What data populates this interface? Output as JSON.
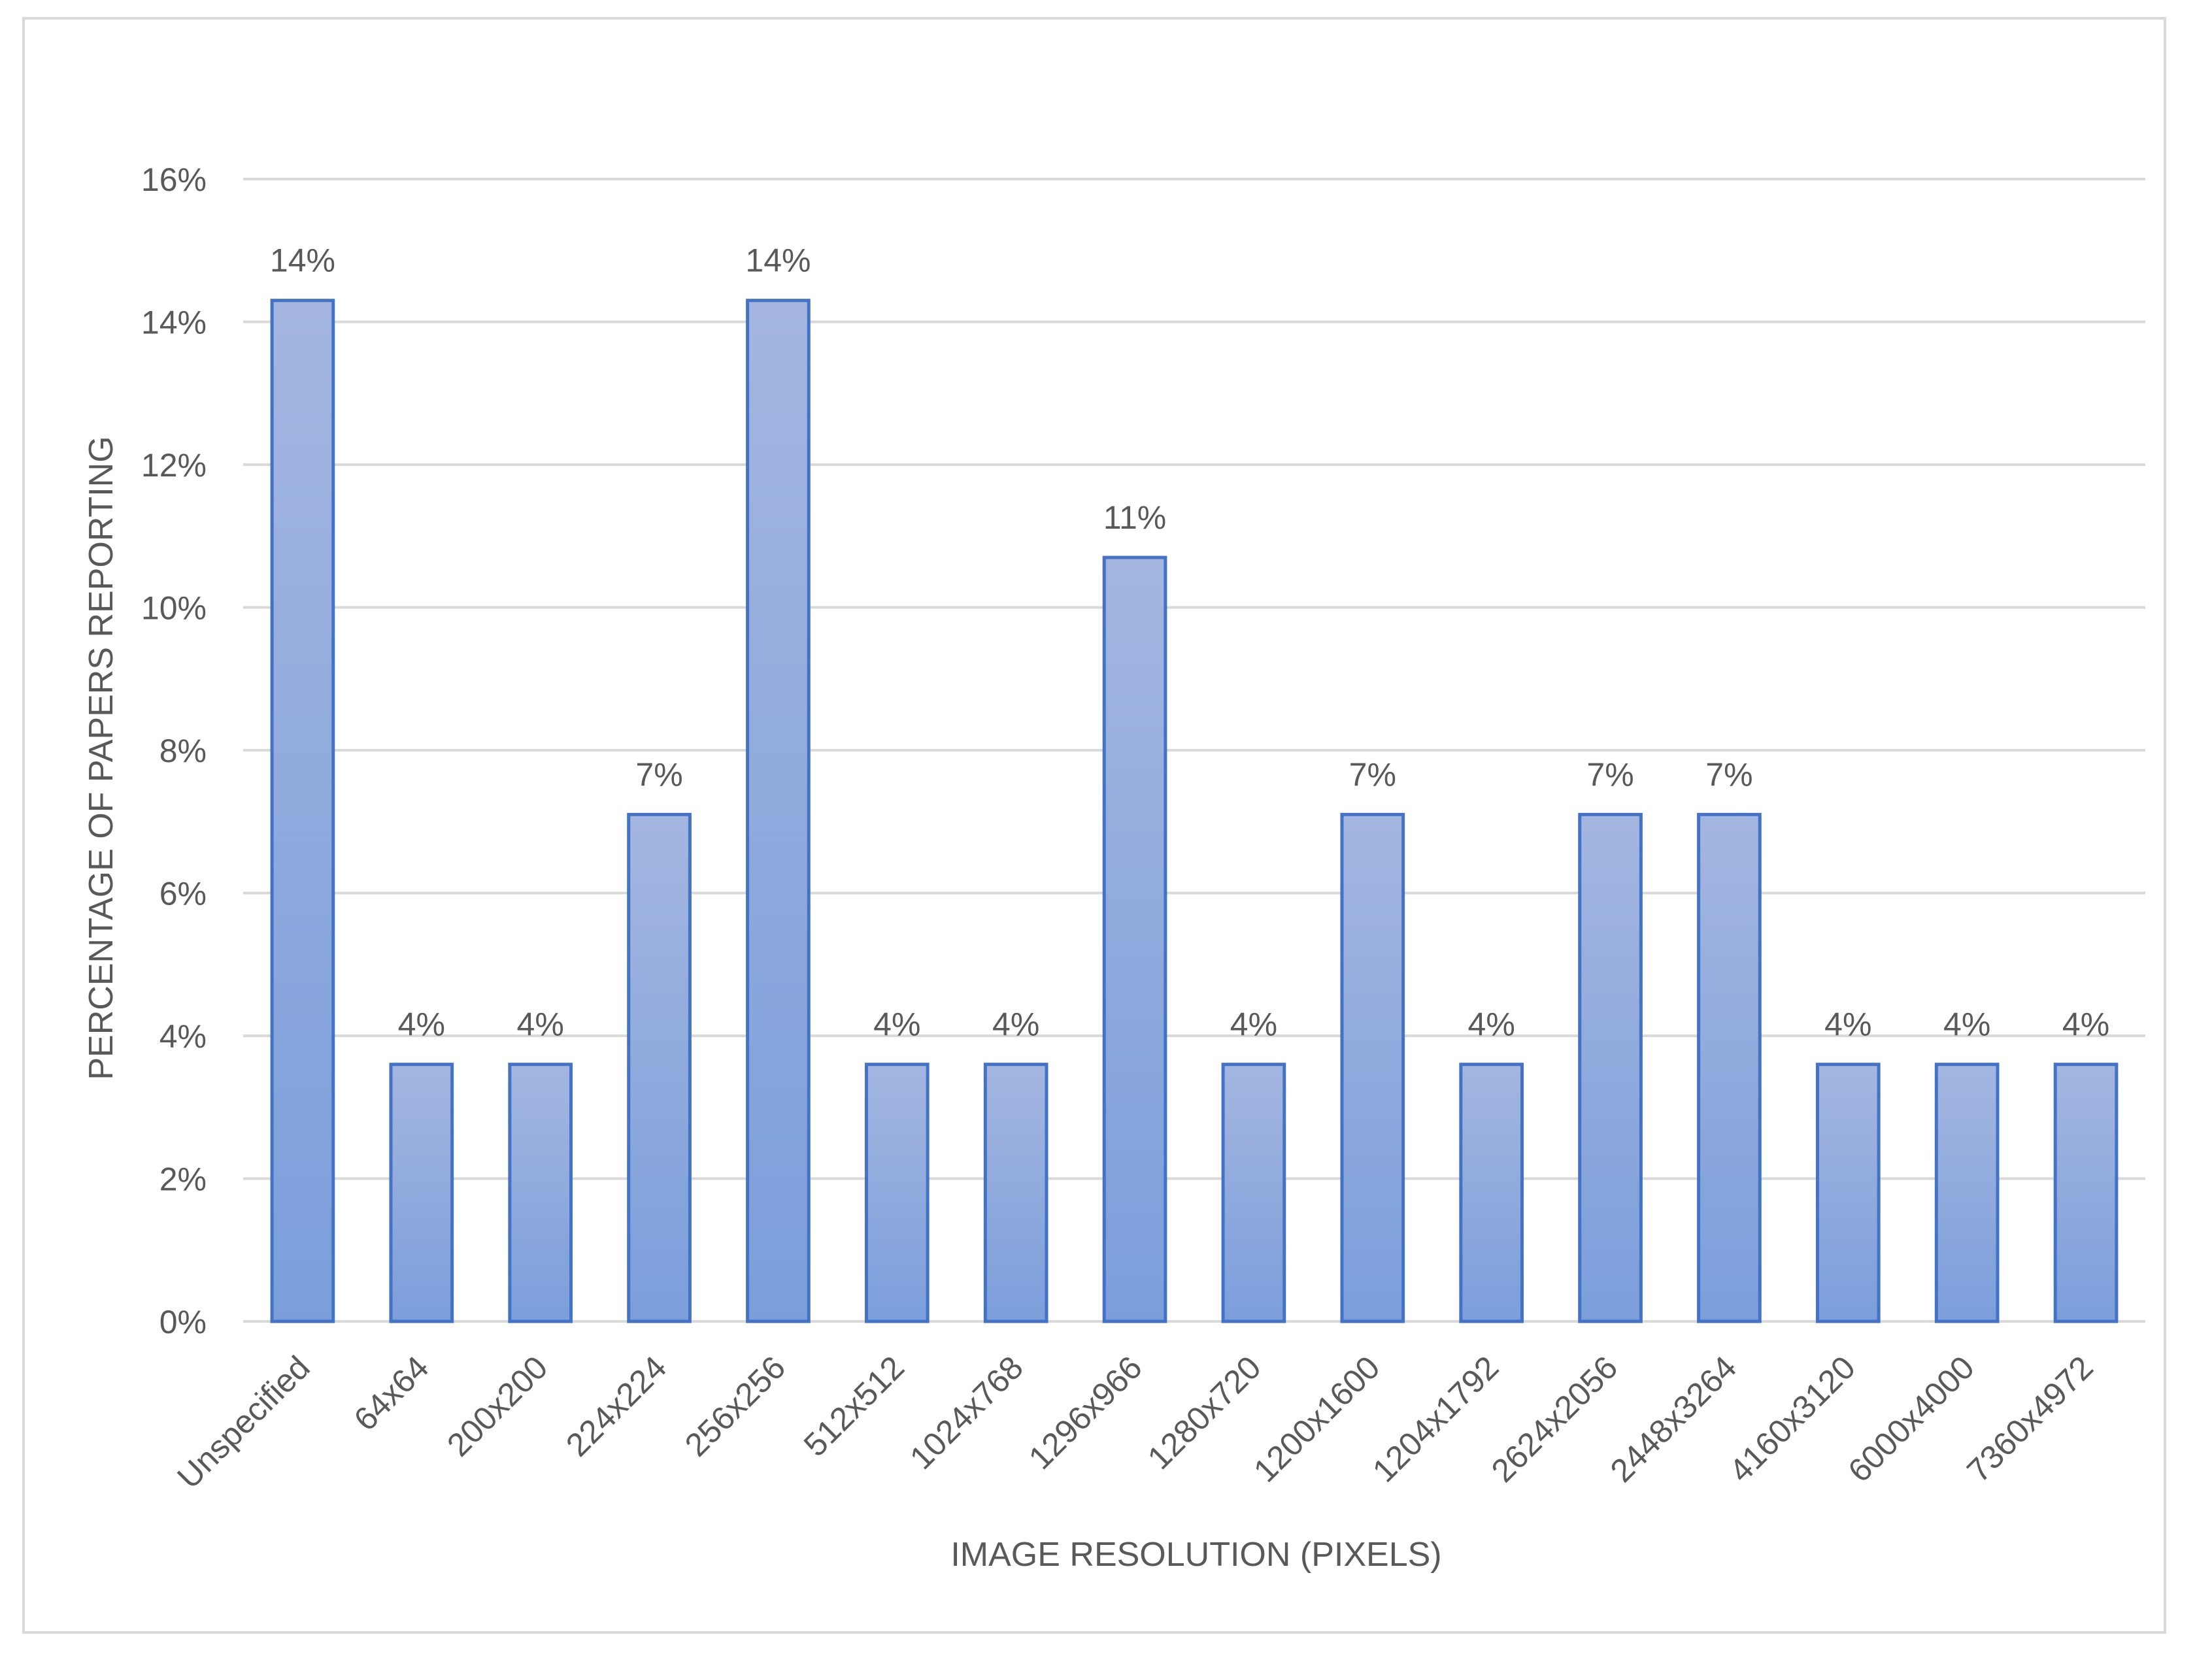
{
  "chart_data": {
    "type": "bar",
    "title": "",
    "xlabel": "IMAGE RESOLUTION (PIXELS)",
    "ylabel": "PERCENTAGE OF PAPERS REPORTING",
    "categories": [
      "Unspecified",
      "64x64",
      "200x200",
      "224x224",
      "256x256",
      "512x512",
      "1024x768",
      "1296x966",
      "1280x720",
      "1200x1600",
      "1204x1792",
      "2624x2056",
      "2448x3264",
      "4160x3120",
      "6000x4000",
      "7360x4972"
    ],
    "values": [
      14.3,
      3.6,
      3.6,
      7.1,
      14.3,
      3.6,
      3.6,
      10.7,
      3.6,
      7.1,
      3.6,
      7.1,
      7.1,
      3.6,
      3.6,
      3.6
    ],
    "data_labels": [
      "14%",
      "4%",
      "4%",
      "7%",
      "14%",
      "4%",
      "4%",
      "11%",
      "4%",
      "7%",
      "4%",
      "7%",
      "7%",
      "4%",
      "4%",
      "4%"
    ],
    "ylim": [
      0,
      16
    ],
    "yticks": [
      0,
      2,
      4,
      6,
      8,
      10,
      12,
      14,
      16
    ],
    "ytick_labels": [
      "0%",
      "2%",
      "4%",
      "6%",
      "8%",
      "10%",
      "12%",
      "14%",
      "16%"
    ],
    "grid": true,
    "legend": "none",
    "colors": {
      "bar_fill_top": "#a4b6e0",
      "bar_fill_bottom": "#7b9edb",
      "bar_stroke": "#4472c4",
      "gridline": "#d9d9d9",
      "text": "#595959",
      "frame_border": "#d9d9d9"
    }
  }
}
